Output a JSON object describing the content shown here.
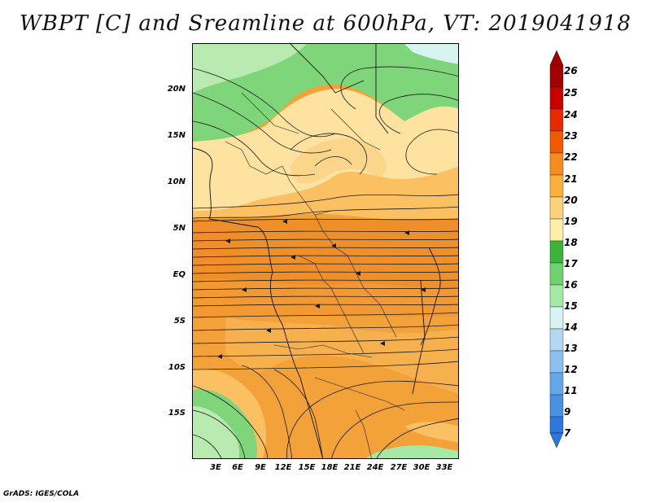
{
  "title": "WBPT [C] and Sreamline at 600hPa, VT: 2019041918",
  "credit": "GrADS: IGES/COLA",
  "map": {
    "lat_labels": [
      "20N",
      "15N",
      "10N",
      "5N",
      "EQ",
      "5S",
      "10S",
      "15S"
    ],
    "lon_labels": [
      "3E",
      "6E",
      "9E",
      "12E",
      "15E",
      "18E",
      "21E",
      "24E",
      "27E",
      "30E",
      "33E"
    ],
    "fields": [
      "wet-bulb potential temperature",
      "streamlines",
      "country borders",
      "coastlines"
    ]
  },
  "colorbar": {
    "labels": [
      "26",
      "25",
      "24",
      "23",
      "22",
      "21",
      "20",
      "19",
      "18",
      "17",
      "16",
      "15",
      "14",
      "13",
      "12",
      "11",
      "9",
      "7"
    ],
    "colors": [
      "#a50000",
      "#c80000",
      "#e62a00",
      "#f05a00",
      "#f78c1e",
      "#fbb03c",
      "#fdd27a",
      "#fdefa8",
      "#3cb43c",
      "#6ed26e",
      "#a6e8a6",
      "#d8f4f0",
      "#b4d8f4",
      "#8cc0f0",
      "#64a8ea",
      "#4a90e2",
      "#2e78dc"
    ]
  },
  "palette": {
    "warm": "#f5a840",
    "deep": "#ef8f2a",
    "light": "#fbc062",
    "cream": "#fde2a0",
    "green": "#7fd67a",
    "lightgreen": "#b9ebb0"
  }
}
